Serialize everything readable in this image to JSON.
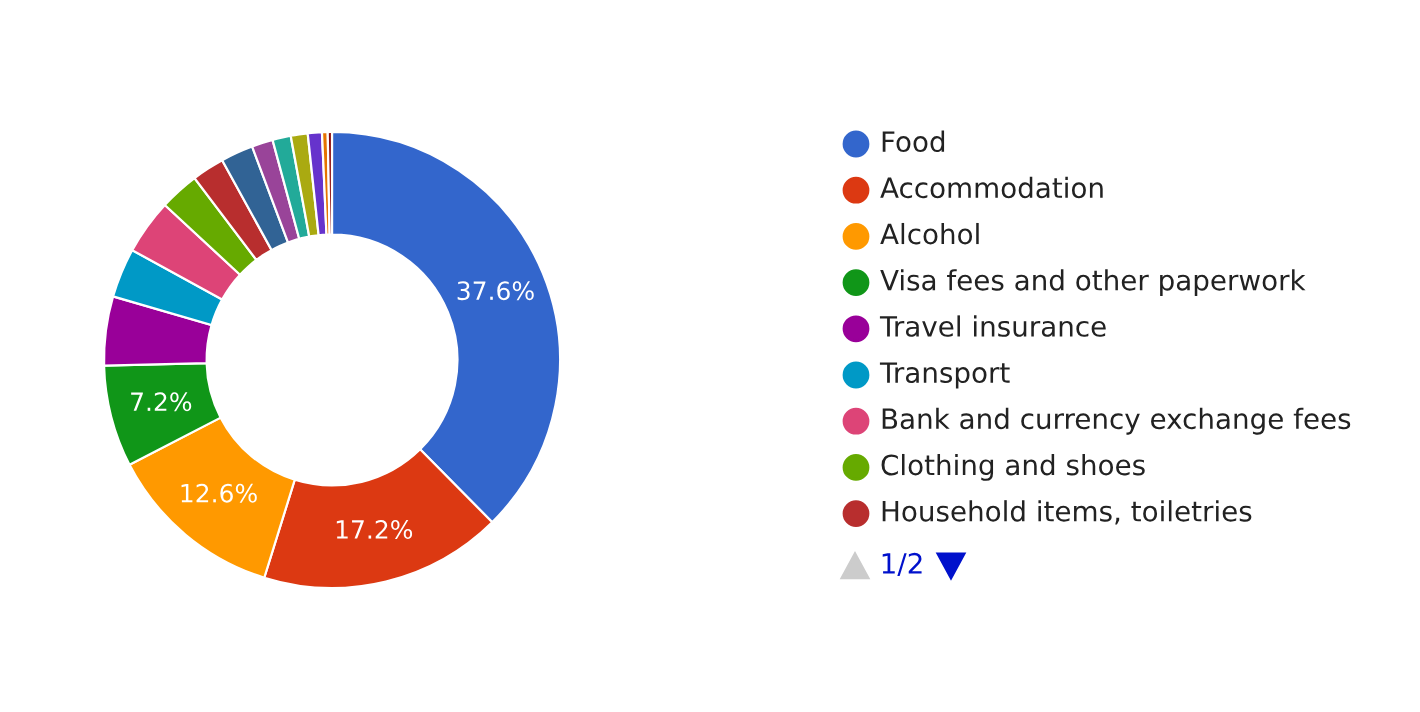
{
  "chart_data": {
    "type": "donut",
    "categories": [
      "Food",
      "Accommodation",
      "Alcohol",
      "Visa fees and other paperwork",
      "Travel insurance",
      "Transport",
      "Bank and currency exchange fees",
      "Clothing and shoes",
      "Household items, toiletries",
      null,
      null,
      null,
      null,
      null,
      null,
      null
    ],
    "values": [
      37.6,
      17.2,
      12.6,
      7.2,
      4.9,
      3.5,
      3.9,
      2.8,
      2.3,
      2.3,
      1.5,
      1.3,
      1.2,
      1.0,
      0.4,
      0.3
    ],
    "colors": [
      "#3366cc",
      "#dc3912",
      "#ff9900",
      "#109618",
      "#990099",
      "#0099c6",
      "#dd4477",
      "#66aa00",
      "#b82e2e",
      "#316395",
      "#994499",
      "#22aa99",
      "#aaaa11",
      "#6633cc",
      "#e67300",
      "#8b0707"
    ],
    "value_labels": [
      "37.6%",
      "17.2%",
      "12.6%",
      "7.2%",
      null,
      null,
      null,
      null,
      null,
      null,
      null,
      null,
      null,
      null,
      null,
      null
    ],
    "legend": "right",
    "annotations": [
      "1/2"
    ]
  }
}
